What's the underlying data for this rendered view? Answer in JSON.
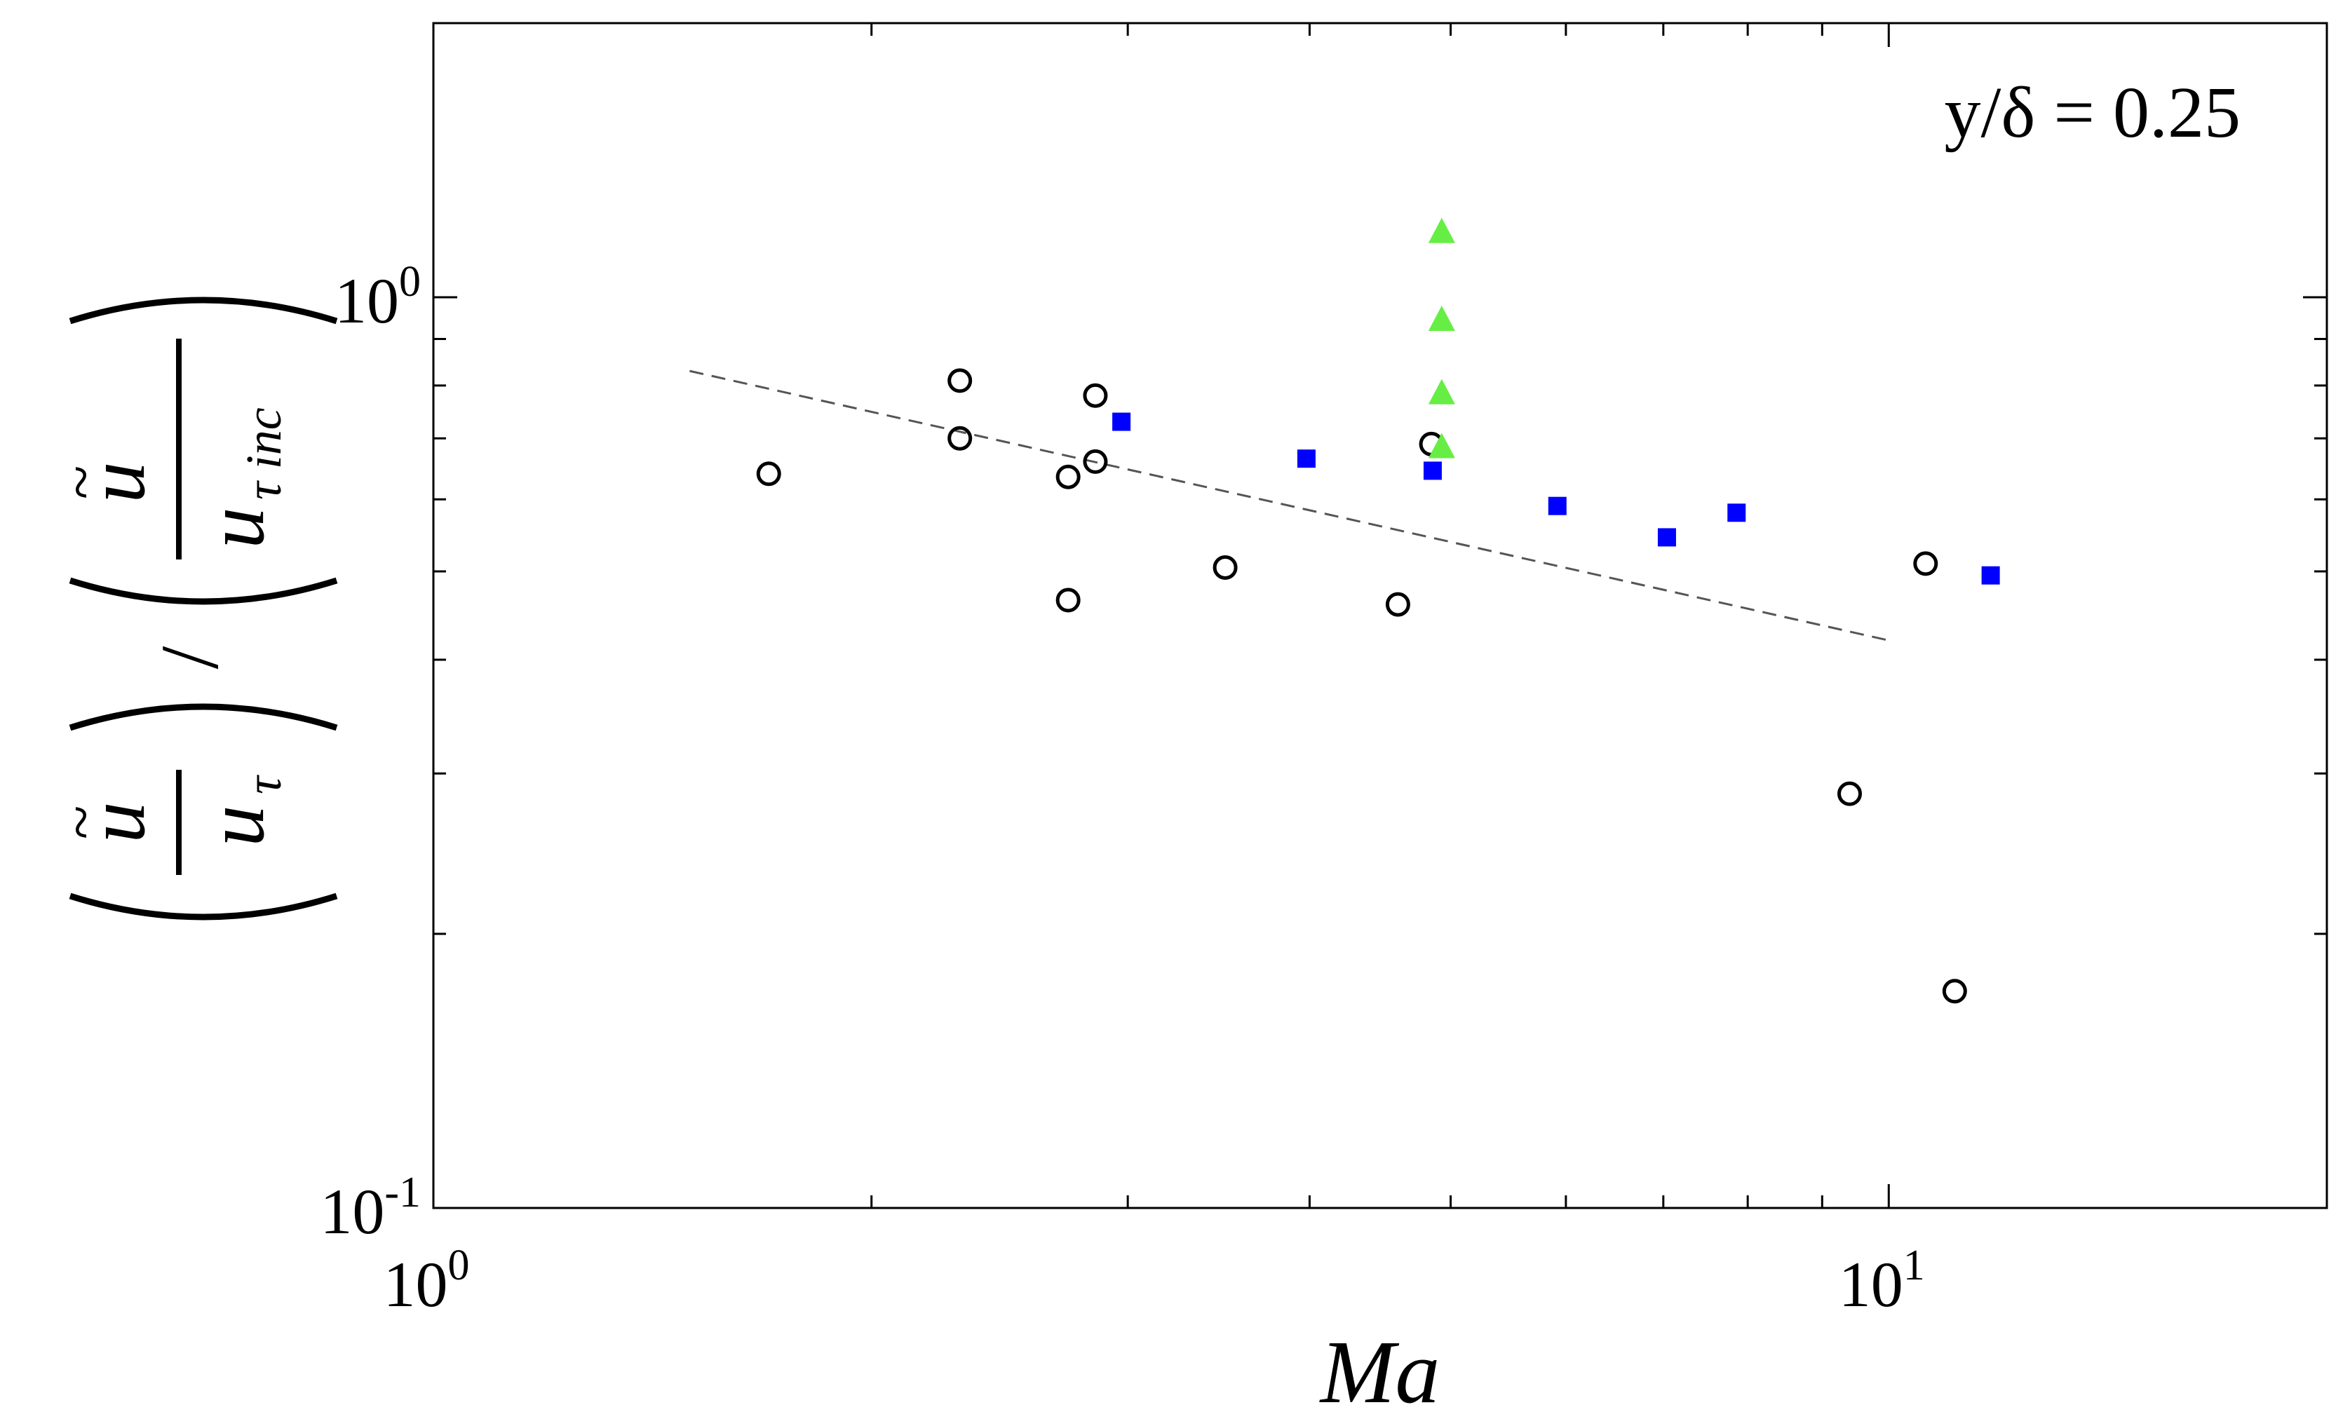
{
  "chart_data": {
    "type": "scatter",
    "xscale": "log",
    "yscale": "log",
    "xlim": [
      1,
      20
    ],
    "ylim": [
      0.1,
      2
    ],
    "xlabel": "Ma",
    "ylabel": "(ũ/uτ)/(ũ/uτ inc)",
    "annotation": "y/δ = 0.25",
    "x_ticks": [
      {
        "base": "10",
        "exp": "0",
        "value": 1
      },
      {
        "base": "10",
        "exp": "1",
        "value": 10
      }
    ],
    "y_ticks": [
      {
        "base": "10",
        "exp": "-1",
        "value": 0.1
      },
      {
        "base": "10",
        "exp": "0",
        "value": 1
      }
    ],
    "series": [
      {
        "name": "open circles",
        "marker": "circle-open",
        "color": "#000000",
        "points": [
          {
            "x": 1.7,
            "y": 0.64
          },
          {
            "x": 2.3,
            "y": 0.81
          },
          {
            "x": 2.3,
            "y": 0.7
          },
          {
            "x": 2.73,
            "y": 0.635
          },
          {
            "x": 2.73,
            "y": 0.465
          },
          {
            "x": 2.85,
            "y": 0.78
          },
          {
            "x": 2.85,
            "y": 0.66
          },
          {
            "x": 3.5,
            "y": 0.505
          },
          {
            "x": 4.6,
            "y": 0.46
          },
          {
            "x": 4.85,
            "y": 0.69
          },
          {
            "x": 9.4,
            "y": 0.285
          },
          {
            "x": 10.6,
            "y": 0.51
          },
          {
            "x": 11.1,
            "y": 0.173
          }
        ]
      },
      {
        "name": "filled squares",
        "marker": "square-filled",
        "color": "#0000ff",
        "points": [
          {
            "x": 2.97,
            "y": 0.73
          },
          {
            "x": 3.98,
            "y": 0.665
          },
          {
            "x": 4.86,
            "y": 0.645
          },
          {
            "x": 5.92,
            "y": 0.59
          },
          {
            "x": 7.04,
            "y": 0.545
          },
          {
            "x": 7.86,
            "y": 0.58
          },
          {
            "x": 11.75,
            "y": 0.495
          }
        ]
      },
      {
        "name": "filled triangles",
        "marker": "triangle-filled",
        "color": "#66ee44",
        "points": [
          {
            "x": 4.93,
            "y": 1.18
          },
          {
            "x": 4.93,
            "y": 0.945
          },
          {
            "x": 4.93,
            "y": 0.785
          },
          {
            "x": 4.93,
            "y": 0.685
          }
        ]
      }
    ],
    "fit_line": {
      "name": "dashed fit",
      "style": "dashed",
      "color": "#555555",
      "points": [
        {
          "x": 1.5,
          "y": 0.83
        },
        {
          "x": 10,
          "y": 0.42
        }
      ]
    }
  }
}
